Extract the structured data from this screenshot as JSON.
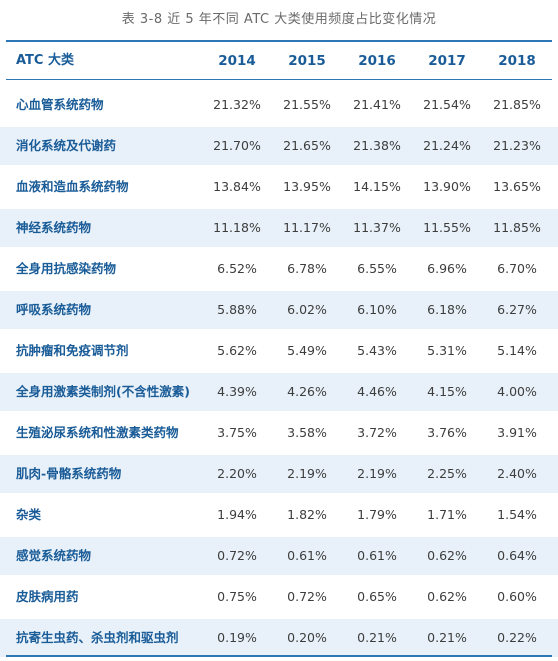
{
  "caption": "表 3-8  近 5 年不同 ATC 大类使用频度占比变化情况",
  "table": {
    "header": {
      "category": "ATC 大类",
      "years": [
        "2014",
        "2015",
        "2016",
        "2017",
        "2018"
      ]
    },
    "rows": [
      {
        "name": "心血管系统药物",
        "values": [
          "21.32%",
          "21.55%",
          "21.41%",
          "21.54%",
          "21.85%"
        ]
      },
      {
        "name": "消化系统及代谢药",
        "values": [
          "21.70%",
          "21.65%",
          "21.38%",
          "21.24%",
          "21.23%"
        ]
      },
      {
        "name": "血液和造血系统药物",
        "values": [
          "13.84%",
          "13.95%",
          "14.15%",
          "13.90%",
          "13.65%"
        ]
      },
      {
        "name": "神经系统药物",
        "values": [
          "11.18%",
          "11.17%",
          "11.37%",
          "11.55%",
          "11.85%"
        ]
      },
      {
        "name": "全身用抗感染药物",
        "values": [
          "6.52%",
          "6.78%",
          "6.55%",
          "6.96%",
          "6.70%"
        ]
      },
      {
        "name": "呼吸系统药物",
        "values": [
          "5.88%",
          "6.02%",
          "6.10%",
          "6.18%",
          "6.27%"
        ]
      },
      {
        "name": "抗肿瘤和免疫调节剂",
        "values": [
          "5.62%",
          "5.49%",
          "5.43%",
          "5.31%",
          "5.14%"
        ]
      },
      {
        "name": "全身用激素类制剂(不含性激素)",
        "values": [
          "4.39%",
          "4.26%",
          "4.46%",
          "4.15%",
          "4.00%"
        ]
      },
      {
        "name": "生殖泌尿系统和性激素类药物",
        "values": [
          "3.75%",
          "3.58%",
          "3.72%",
          "3.76%",
          "3.91%"
        ]
      },
      {
        "name": "肌肉-骨骼系统药物",
        "values": [
          "2.20%",
          "2.19%",
          "2.19%",
          "2.25%",
          "2.40%"
        ]
      },
      {
        "name": "杂类",
        "values": [
          "1.94%",
          "1.82%",
          "1.79%",
          "1.71%",
          "1.54%"
        ]
      },
      {
        "name": "感觉系统药物",
        "values": [
          "0.72%",
          "0.61%",
          "0.61%",
          "0.62%",
          "0.64%"
        ]
      },
      {
        "name": "皮肤病用药",
        "values": [
          "0.75%",
          "0.72%",
          "0.65%",
          "0.62%",
          "0.60%"
        ]
      },
      {
        "name": "抗寄生虫药、杀虫剂和驱虫剂",
        "values": [
          "0.19%",
          "0.20%",
          "0.21%",
          "0.21%",
          "0.22%"
        ]
      }
    ]
  },
  "colors": {
    "accent": "#2c78b6",
    "header_text": "#1a5c98",
    "stripe": "#e8f1f9"
  }
}
